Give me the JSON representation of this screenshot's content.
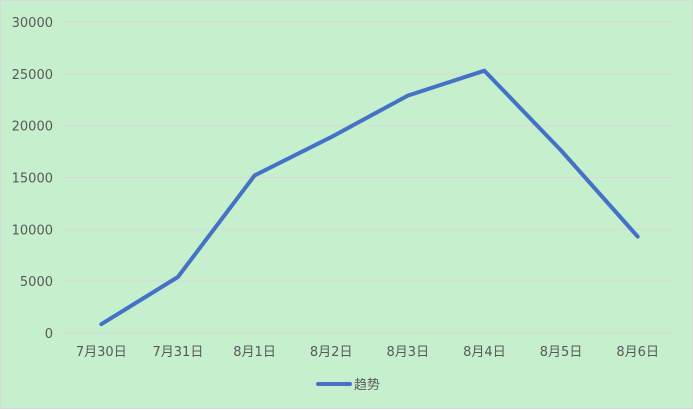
{
  "chart_data": {
    "type": "line",
    "title": "",
    "xlabel": "",
    "ylabel": "",
    "categories": [
      "7月30日",
      "7月31日",
      "8月1日",
      "8月2日",
      "8月3日",
      "8月4日",
      "8月5日",
      "8月6日"
    ],
    "series": [
      {
        "name": "趋势",
        "values": [
          850,
          5400,
          15200,
          18900,
          22900,
          25300,
          17600,
          9300
        ],
        "color": "#4472c4"
      }
    ],
    "ylim": [
      0,
      30000
    ],
    "yticks": [
      0,
      5000,
      10000,
      15000,
      20000,
      25000,
      30000
    ],
    "grid": true,
    "legend": "bottom",
    "background_color": "#c6efce",
    "gridline_color": "#d9d9d9",
    "text_color": "#595959"
  }
}
